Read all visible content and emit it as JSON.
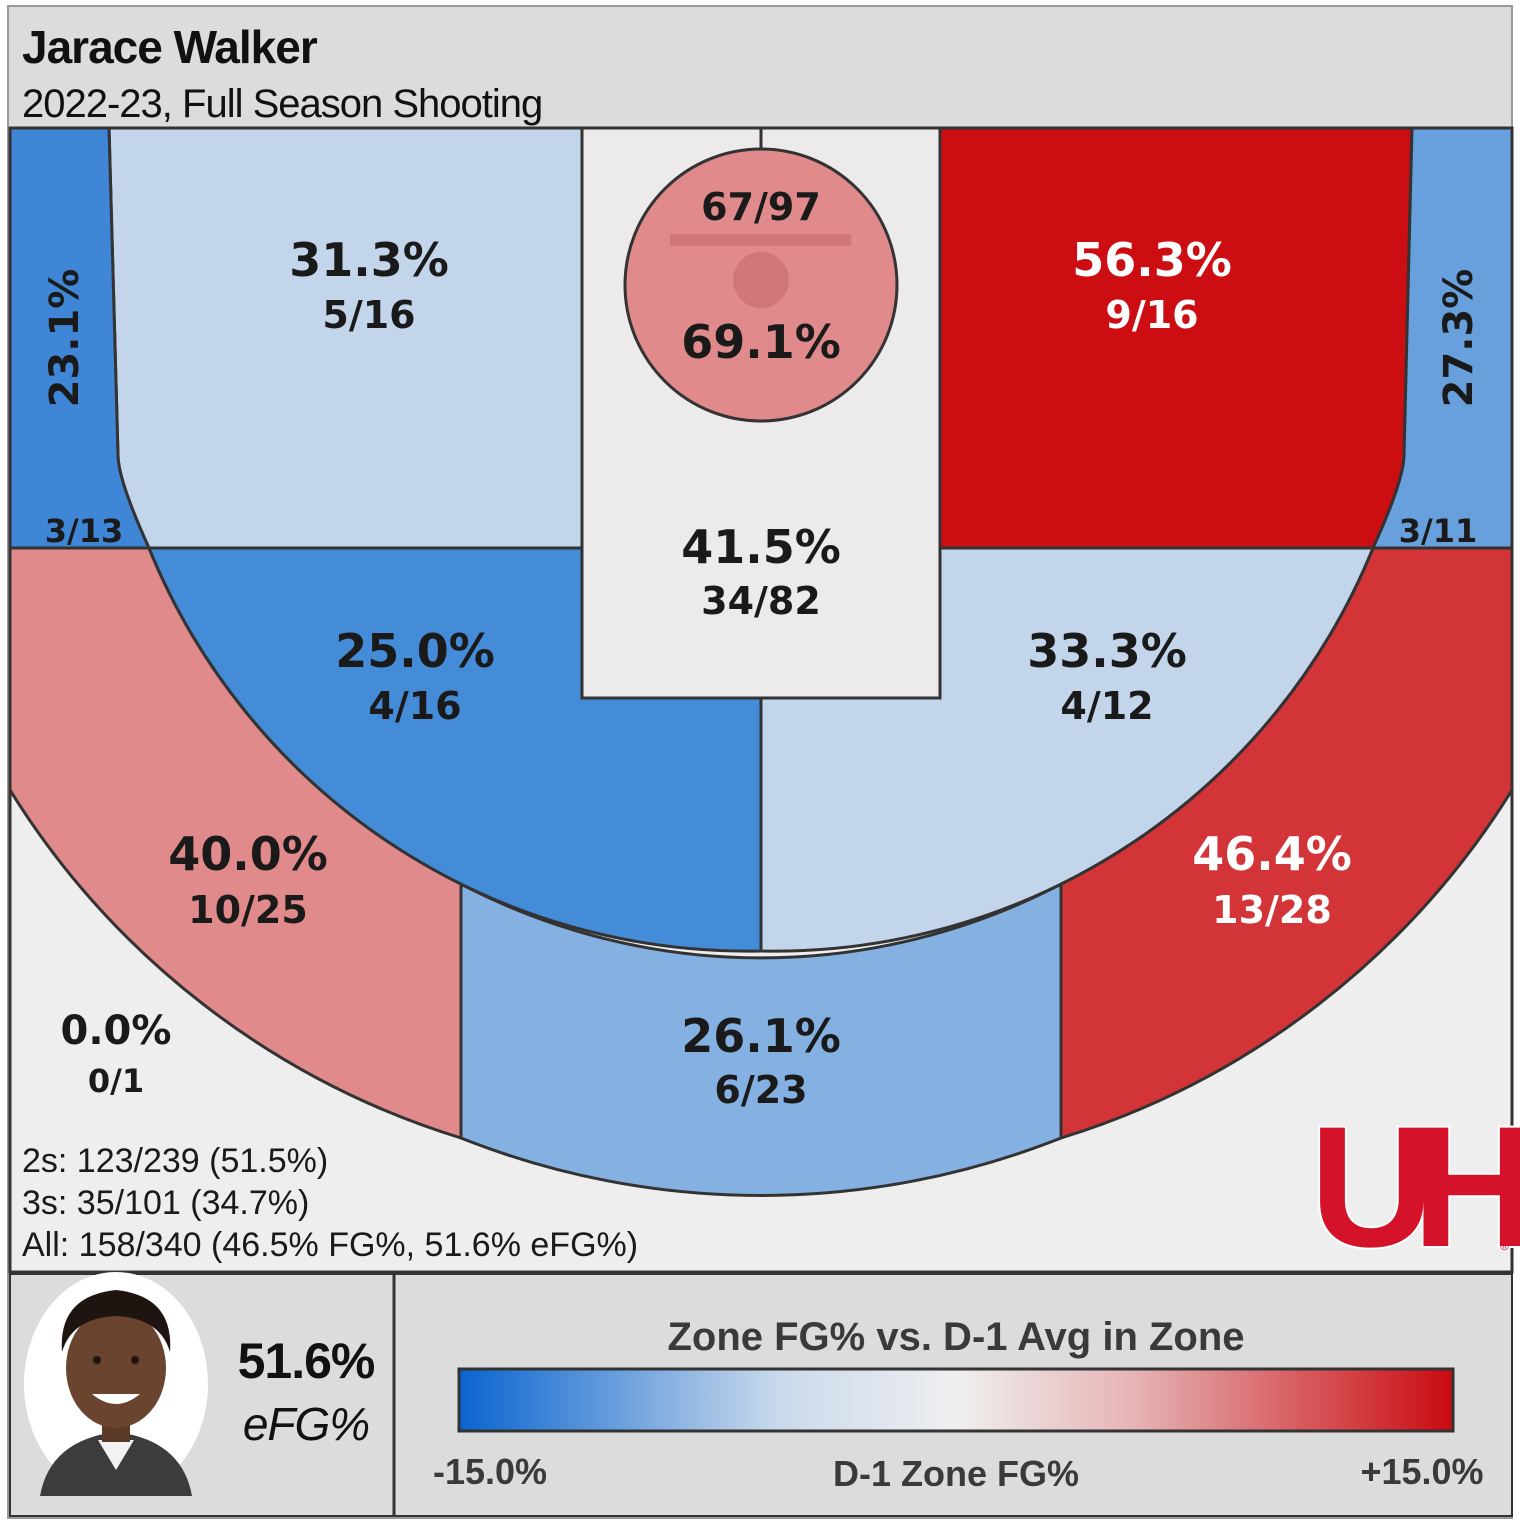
{
  "header": {
    "title": "Jarace Walker",
    "subtitle": "2022-23, Full Season Shooting"
  },
  "chart_data": {
    "type": "heatmap",
    "zones": [
      {
        "id": "left-corner-3",
        "pct": "23.1%",
        "frac": "3/13",
        "made": 3,
        "att": 13,
        "color": "#3F86D6"
      },
      {
        "id": "left-baseline-2",
        "pct": "31.3%",
        "frac": "5/16",
        "made": 5,
        "att": 16,
        "color": "#C3D5EA"
      },
      {
        "id": "rim",
        "pct": "69.1%",
        "frac": "67/97",
        "made": 67,
        "att": 97,
        "color": "#E08A8B"
      },
      {
        "id": "paint",
        "pct": "41.5%",
        "frac": "34/82",
        "made": 34,
        "att": 82,
        "color": "#EDEAEB"
      },
      {
        "id": "right-baseline-2",
        "pct": "56.3%",
        "frac": "9/16",
        "made": 9,
        "att": 16,
        "color": "#CC0E13"
      },
      {
        "id": "right-corner-3",
        "pct": "27.3%",
        "frac": "3/11",
        "made": 3,
        "att": 11,
        "color": "#67A0DD"
      },
      {
        "id": "left-elbow-2",
        "pct": "25.0%",
        "frac": "4/16",
        "made": 4,
        "att": 16,
        "color": "#448BD8"
      },
      {
        "id": "right-elbow-2",
        "pct": "33.3%",
        "frac": "4/12",
        "made": 4,
        "att": 12,
        "color": "#C3D5EA"
      },
      {
        "id": "left-wing-3",
        "pct": "40.0%",
        "frac": "10/25",
        "made": 10,
        "att": 25,
        "color": "#E08A8B"
      },
      {
        "id": "top-key-3",
        "pct": "26.1%",
        "frac": "6/23",
        "made": 6,
        "att": 23,
        "color": "#84B0E2"
      },
      {
        "id": "right-wing-3",
        "pct": "46.4%",
        "frac": "13/28",
        "made": 13,
        "att": 28,
        "color": "#D23437"
      },
      {
        "id": "heave",
        "pct": "0.0%",
        "frac": "0/1",
        "made": 0,
        "att": 1,
        "color": "#EEEEEE"
      }
    ],
    "legend": {
      "title": "Zone FG% vs. D-1 Avg in Zone",
      "min_label": "-15.0%",
      "mid_label": "D-1 Zone FG%",
      "max_label": "+15.0%",
      "range": [
        -15,
        15
      ],
      "colors": [
        "#0A64CF",
        "#C9D9EC",
        "#EFEFEF",
        "#E6B3B4",
        "#C90A10"
      ]
    }
  },
  "summary": {
    "twos": "2s: 123/239 (51.5%)",
    "threes": "3s: 35/101 (34.7%)",
    "all": "All: 158/340 (46.5% FG%, 51.6% eFG%)"
  },
  "player": {
    "efg_value": "51.6%",
    "efg_label": "eFG%"
  },
  "logo": {
    "text": "UH",
    "color": "#D4132B"
  },
  "colors": {
    "background": "#DCDCDC",
    "court_bg": "#EEEEEE",
    "border": "#333333"
  }
}
